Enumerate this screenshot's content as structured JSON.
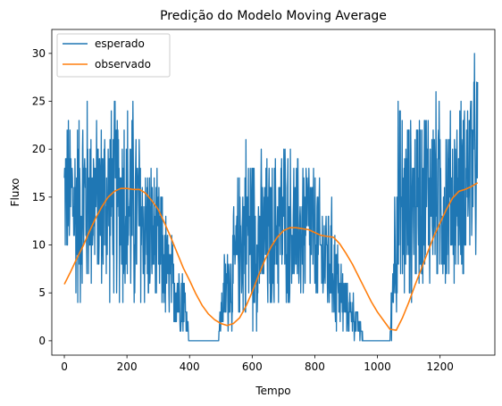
{
  "chart_data": {
    "type": "line",
    "title": "Predição do Modelo Moving Average",
    "xlabel": "Tempo",
    "ylabel": "Fluxo",
    "xlim": [
      -40,
      1375
    ],
    "ylim": [
      -1.5,
      32.5
    ],
    "xticks": [
      0,
      200,
      400,
      600,
      800,
      1000,
      1200
    ],
    "yticks": [
      0,
      5,
      10,
      15,
      20,
      25,
      30
    ],
    "grid": false,
    "legend": "top-left",
    "series": [
      {
        "name": "esperado",
        "color": "#1f77b4",
        "description_envelope": {
          "x": [
            0,
            20,
            40,
            60,
            80,
            100,
            130,
            160,
            190,
            220,
            250,
            280,
            310,
            340,
            370,
            380,
            400,
            490,
            510,
            540,
            560,
            580,
            620,
            660,
            700,
            740,
            780,
            820,
            860,
            880,
            900,
            920,
            960,
            1040,
            1060,
            1100,
            1140,
            1180,
            1220,
            1260,
            1300,
            1320
          ],
          "high": [
            25,
            25,
            26,
            28,
            27,
            25,
            26,
            27,
            28,
            27,
            23,
            20,
            17,
            12,
            10,
            10,
            0,
            0,
            10,
            14,
            20,
            24,
            21,
            20,
            23,
            20,
            22,
            17,
            16,
            10,
            7,
            6,
            0,
            0,
            27,
            25,
            27,
            28,
            26,
            26,
            31,
            31
          ],
          "low": [
            6,
            5,
            2,
            1,
            3,
            5,
            2,
            3,
            1,
            0,
            1,
            2,
            1,
            0,
            0,
            0,
            0,
            0,
            0,
            0,
            1,
            0,
            0,
            1,
            3,
            2,
            3,
            1,
            0,
            0,
            0,
            0,
            0,
            0,
            0,
            2,
            4,
            4,
            3,
            5,
            6,
            6
          ]
        }
      },
      {
        "name": "observado",
        "color": "#ff7f0e",
        "x": [
          0,
          20,
          40,
          60,
          80,
          100,
          120,
          140,
          160,
          180,
          200,
          220,
          240,
          260,
          280,
          300,
          320,
          340,
          360,
          380,
          400,
          420,
          440,
          460,
          480,
          500,
          520,
          540,
          560,
          580,
          600,
          620,
          640,
          660,
          680,
          700,
          720,
          740,
          760,
          780,
          800,
          820,
          840,
          860,
          880,
          900,
          920,
          940,
          960,
          980,
          1000,
          1020,
          1040,
          1060,
          1080,
          1100,
          1120,
          1140,
          1160,
          1180,
          1200,
          1220,
          1240,
          1260,
          1280,
          1300,
          1320
        ],
        "y": [
          5.9,
          7.2,
          8.6,
          9.9,
          11.4,
          12.8,
          14.0,
          15.0,
          15.6,
          15.9,
          15.9,
          15.8,
          15.8,
          15.4,
          14.6,
          13.7,
          12.3,
          10.8,
          9.2,
          7.6,
          6.3,
          4.9,
          3.7,
          2.8,
          2.2,
          1.8,
          1.6,
          1.8,
          2.4,
          3.6,
          5.1,
          6.8,
          8.4,
          9.8,
          10.8,
          11.5,
          11.8,
          11.8,
          11.7,
          11.6,
          11.3,
          11.0,
          10.9,
          10.8,
          10.1,
          9.1,
          8.0,
          6.7,
          5.4,
          4.1,
          3.0,
          2.1,
          1.2,
          1.1,
          2.4,
          4.0,
          5.8,
          7.5,
          9.2,
          10.9,
          12.3,
          13.7,
          14.9,
          15.6,
          15.8,
          16.1,
          16.5
        ]
      }
    ]
  }
}
